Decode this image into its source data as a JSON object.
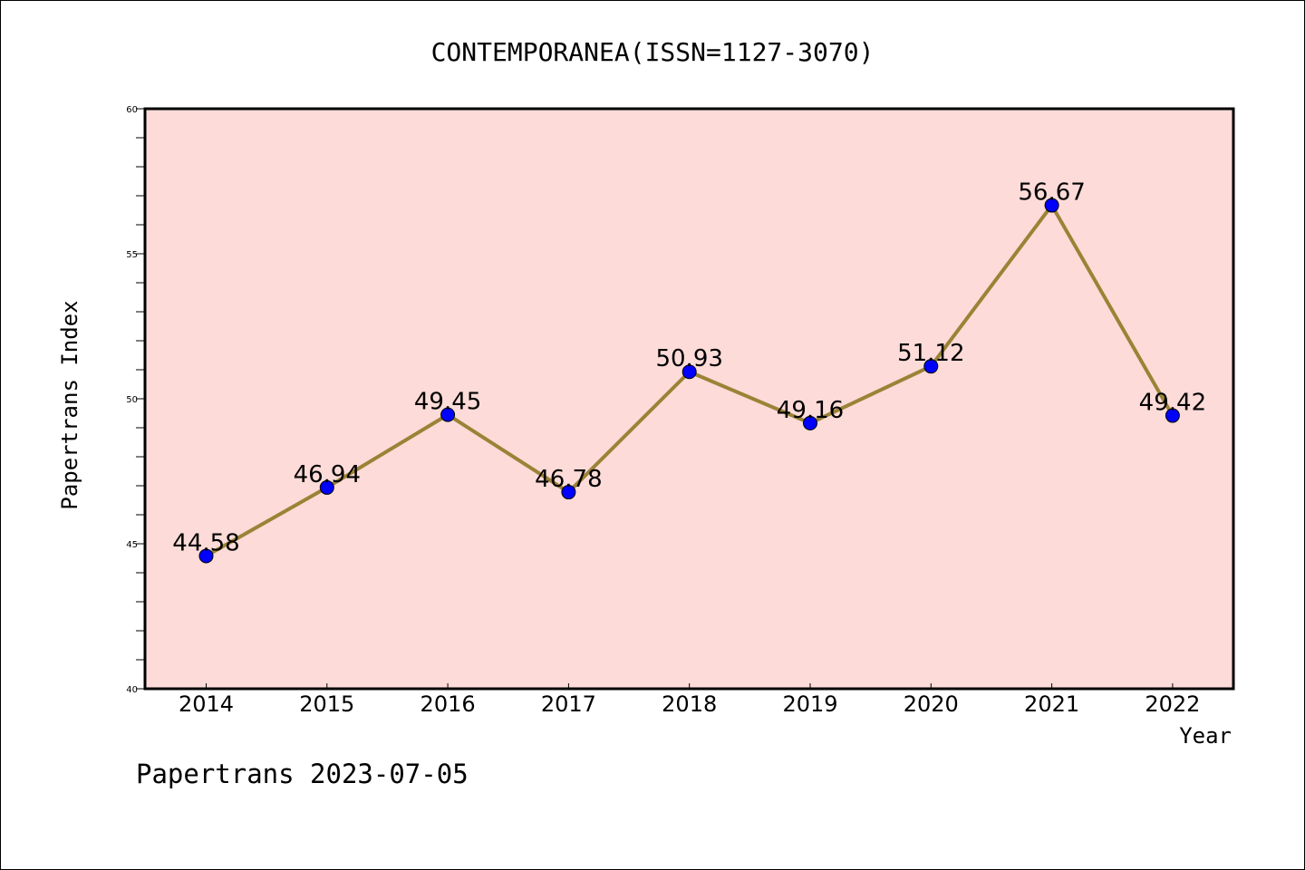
{
  "chart_data": {
    "type": "line",
    "title": "CONTEMPORANEA(ISSN=1127-3070)",
    "xlabel": "Year",
    "ylabel": "Papertrans Index",
    "categories": [
      "2014",
      "2015",
      "2016",
      "2017",
      "2018",
      "2019",
      "2020",
      "2021",
      "2022"
    ],
    "series": [
      {
        "values": [
          44.58,
          46.94,
          49.45,
          46.78,
          50.93,
          49.16,
          51.12,
          56.67,
          49.42
        ]
      }
    ],
    "data_labels": [
      "44.58",
      "46.94",
      "49.45",
      "46.78",
      "50.93",
      "49.16",
      "51.12",
      "56.67",
      "49.42"
    ],
    "ylim": [
      40,
      60
    ],
    "yticks": [
      40,
      45,
      50,
      55,
      60
    ],
    "grid": false,
    "colors": {
      "plot_background": "#fddbd8",
      "line": "#9a8336",
      "marker": "#0000ff"
    }
  },
  "footer": {
    "text": "Papertrans 2023-07-05"
  }
}
